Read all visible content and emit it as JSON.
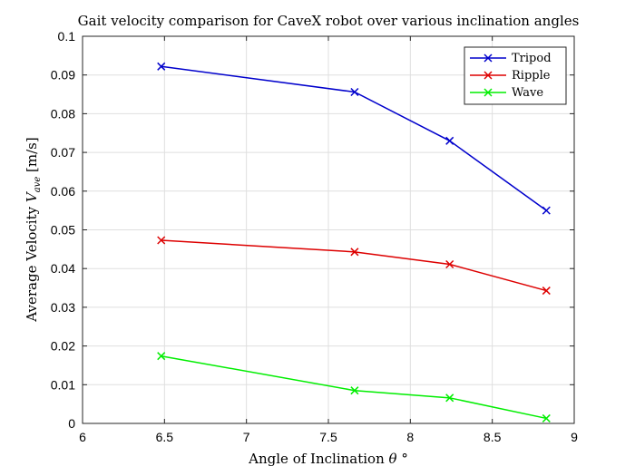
{
  "chart_data": {
    "type": "line",
    "title": "Gait velocity comparison for CaveX robot over various inclination angles",
    "xlabel_text": "Angle of Inclination ",
    "xlabel_symbol": "θ",
    "xlabel_unit": " °",
    "ylabel_text": "Average Velocity ",
    "ylabel_symbol": "V",
    "ylabel_subscript": "ave",
    "ylabel_unit": " [m/s]",
    "xlim": [
      6,
      9
    ],
    "ylim": [
      0,
      0.1
    ],
    "x_ticks": [
      "6",
      "6.5",
      "7",
      "7.5",
      "8",
      "8.5",
      "9"
    ],
    "y_ticks": [
      "0",
      "0.01",
      "0.02",
      "0.03",
      "0.04",
      "0.05",
      "0.06",
      "0.07",
      "0.08",
      "0.09",
      "0.1"
    ],
    "grid": true,
    "legend_position": "top-right",
    "x": [
      6.48,
      7.66,
      8.24,
      8.83
    ],
    "series": [
      {
        "name": "Tripod",
        "color": "#0000cc",
        "values": [
          0.0922,
          0.0856,
          0.073,
          0.055
        ]
      },
      {
        "name": "Ripple",
        "color": "#dd0000",
        "values": [
          0.0473,
          0.0443,
          0.0411,
          0.0343
        ]
      },
      {
        "name": "Wave",
        "color": "#00ee00",
        "values": [
          0.0174,
          0.0085,
          0.0066,
          0.0013
        ]
      }
    ]
  }
}
